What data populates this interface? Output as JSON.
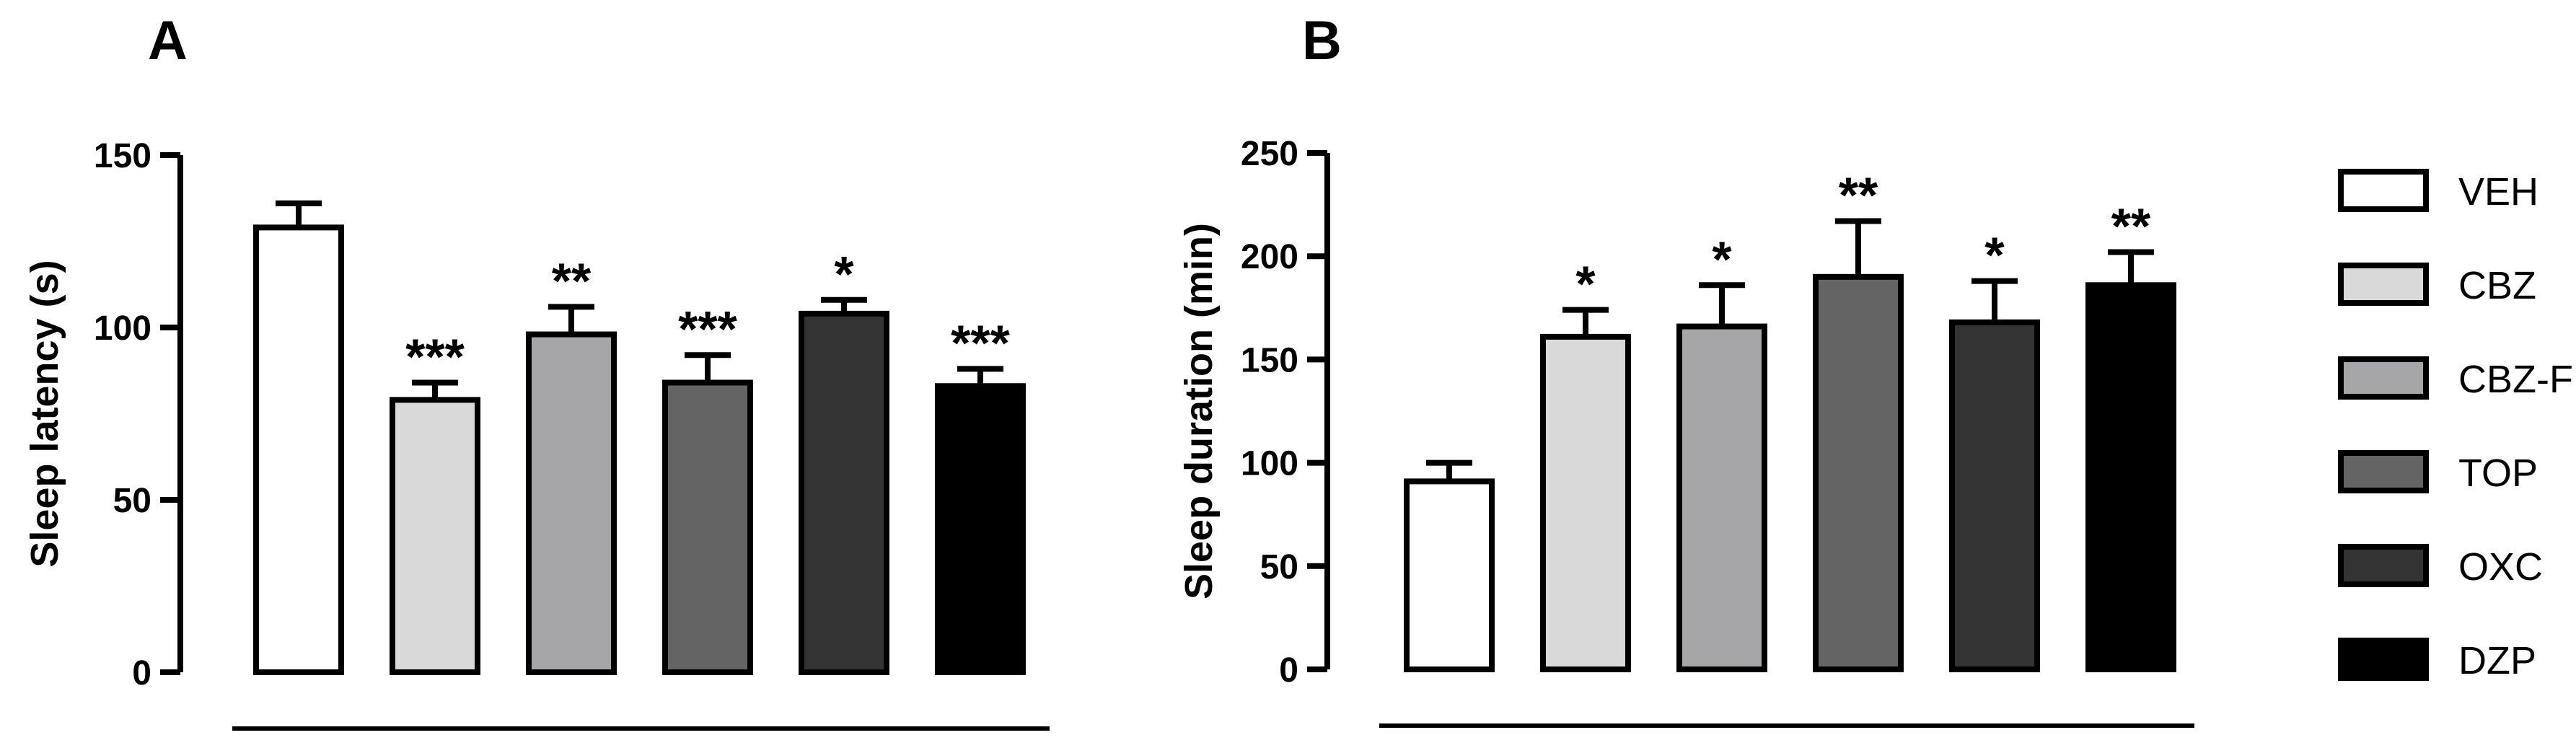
{
  "chart_data": [
    {
      "type": "bar",
      "panel": "A",
      "title": "",
      "xlabel": "",
      "ylabel": "Sleep latency (s)",
      "ylim": [
        0,
        150
      ],
      "yticks": [
        0,
        50,
        100,
        150
      ],
      "categories": [
        "VEH",
        "CBZ",
        "CBZ-F",
        "TOP",
        "OXC",
        "DZP"
      ],
      "values": [
        129,
        79,
        98,
        84,
        104,
        83
      ],
      "errors": [
        7,
        5,
        8,
        8,
        4,
        5
      ],
      "significance": [
        "",
        "***",
        "**",
        "***",
        "*",
        "***"
      ]
    },
    {
      "type": "bar",
      "panel": "B",
      "title": "",
      "xlabel": "",
      "ylabel": "Sleep duration (min)",
      "ylim": [
        0,
        250
      ],
      "yticks": [
        0,
        50,
        100,
        150,
        200,
        250
      ],
      "categories": [
        "VEH",
        "CBZ",
        "CBZ-F",
        "TOP",
        "OXC",
        "DZP"
      ],
      "values": [
        91,
        161,
        166,
        190,
        168,
        186
      ],
      "errors": [
        9,
        13,
        20,
        27,
        20,
        16
      ],
      "significance": [
        "",
        "*",
        "*",
        "**",
        "*",
        "**"
      ]
    }
  ],
  "legend": {
    "position": "right",
    "items": [
      {
        "label": "VEH",
        "color": "#ffffff"
      },
      {
        "label": "CBZ",
        "color": "#d9d9d9"
      },
      {
        "label": "CBZ-F",
        "color": "#a6a6a8"
      },
      {
        "label": "TOP",
        "color": "#646464"
      },
      {
        "label": "OXC",
        "color": "#333333"
      },
      {
        "label": "DZP",
        "color": "#000000"
      }
    ]
  }
}
